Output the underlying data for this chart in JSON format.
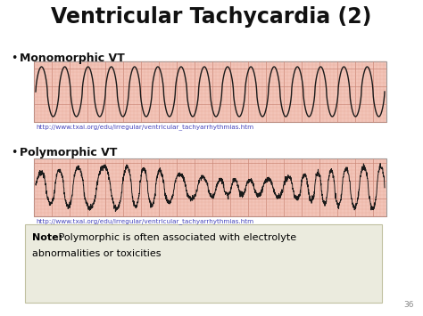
{
  "title": "Ventricular Tachycardia (2)",
  "bullet1": "Monomorphic VT",
  "bullet2": "Polymorphic VT",
  "url": "http://www.txai.org/edu/irregular/ventricular_tachyarrhythmias.htm",
  "note_bold": "Note:",
  "note_text": " Polymorphic is often associated with electrolyte\nabnormalities or toxicities",
  "page_num": "36",
  "bg_color": "#ffffff",
  "ecg_bg_color": "#f2c4b8",
  "ecg_grid_minor": "#e8a898",
  "ecg_grid_major": "#cc8878",
  "ecg_line_color": "#1a1a1a",
  "note_bg": "#ebebde",
  "note_border": "#c0c0a0",
  "url_color": "#4444bb",
  "title_color": "#111111",
  "bullet_color": "#111111",
  "page_color": "#888888"
}
